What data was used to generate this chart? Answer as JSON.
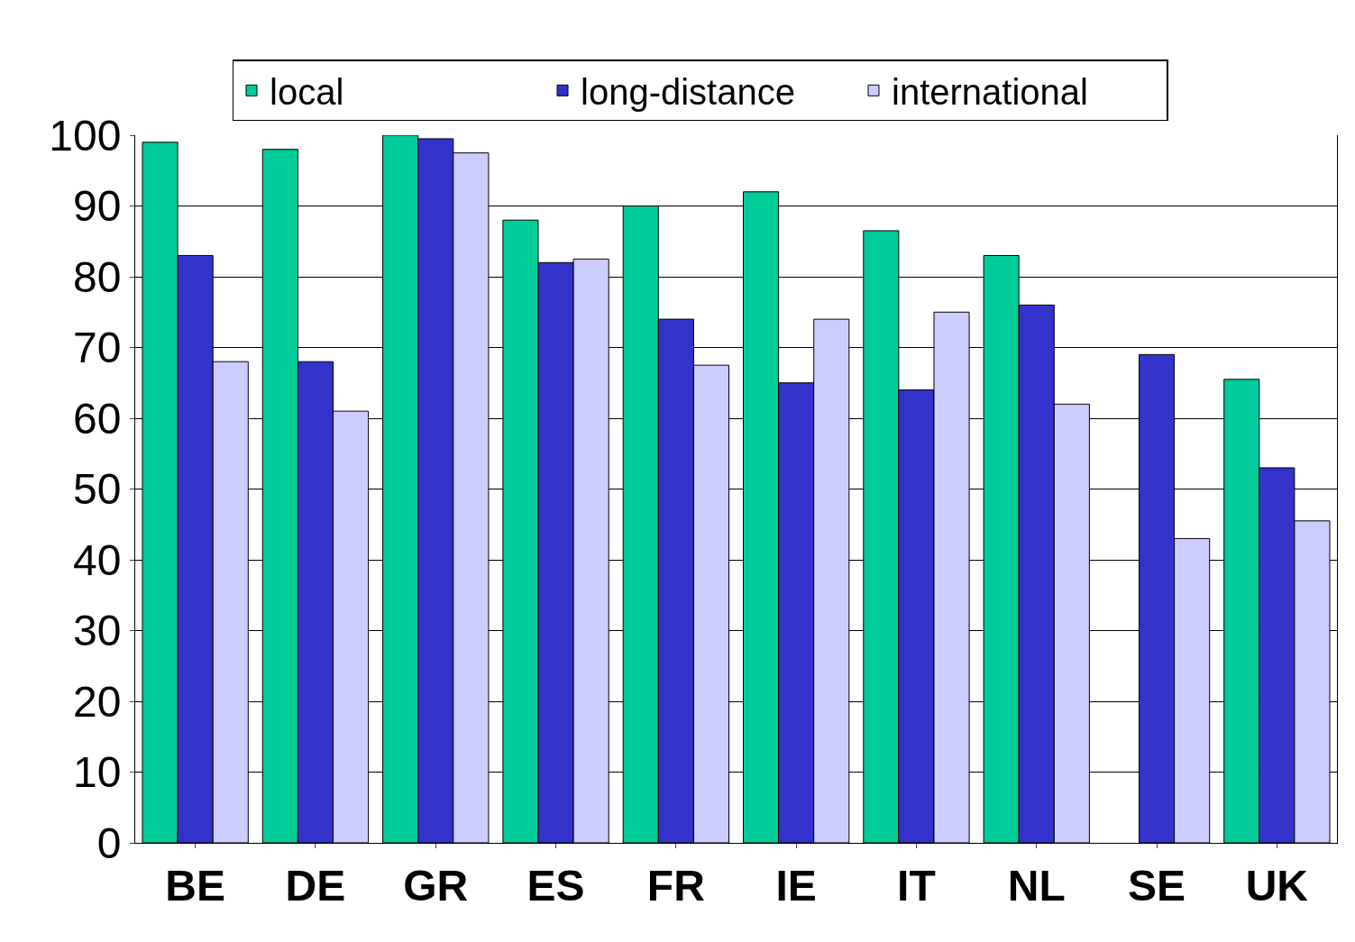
{
  "chart_data": {
    "type": "bar",
    "categories": [
      "BE",
      "DE",
      "GR",
      "ES",
      "FR",
      "IE",
      "IT",
      "NL",
      "SE",
      "UK"
    ],
    "series": [
      {
        "name": "local",
        "color": "#00cc99",
        "values": [
          99,
          98,
          100,
          88,
          90,
          92,
          86.5,
          83,
          null,
          65.5
        ]
      },
      {
        "name": "long-distance",
        "color": "#3333cc",
        "values": [
          83,
          68,
          99.5,
          82,
          74,
          65,
          64,
          76,
          69,
          53
        ]
      },
      {
        "name": "international",
        "color": "#ccccff",
        "values": [
          68,
          61,
          97.5,
          82.5,
          67.5,
          74,
          75,
          62,
          43,
          45.5
        ]
      }
    ],
    "ylim": [
      0,
      100
    ],
    "yticks": [
      0,
      10,
      20,
      30,
      40,
      50,
      60,
      70,
      80,
      90,
      100
    ],
    "grid": "y",
    "legend": "top"
  }
}
